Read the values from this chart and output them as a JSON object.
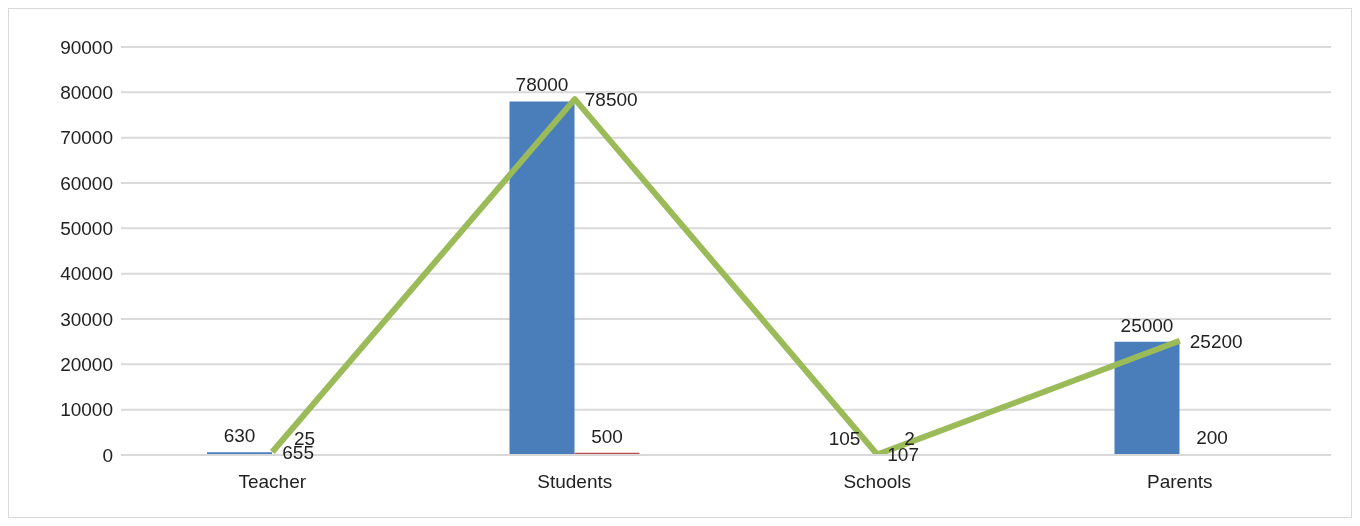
{
  "chart_data": {
    "type": "bar",
    "categories": [
      "Teacher",
      "Students",
      "Schools",
      "Parents"
    ],
    "series": [
      {
        "color": "#4a7ebb",
        "values": [
          630,
          78000,
          105,
          25000
        ]
      },
      {
        "color": "#c0504d",
        "values": [
          25,
          500,
          2,
          200
        ]
      },
      {
        "type": "line",
        "color": "#9bbb59",
        "values": [
          655,
          78500,
          107,
          25200
        ]
      }
    ],
    "ylim": [
      0,
      90000
    ],
    "yticks": [
      0,
      10000,
      20000,
      30000,
      40000,
      50000,
      60000,
      70000,
      80000,
      90000
    ],
    "grid": "y",
    "data_labels": true,
    "marker": "none",
    "line_style": "solid"
  }
}
